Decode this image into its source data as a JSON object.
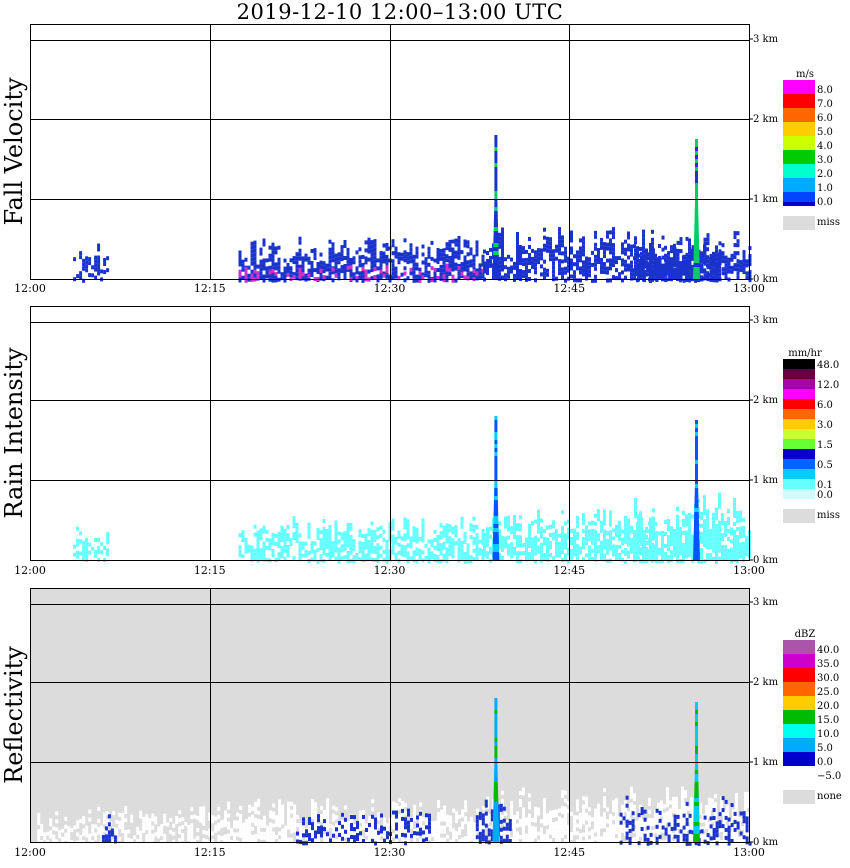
{
  "title": "2019-12-10   12:00–13:00 UTC",
  "x_ticks": [
    "12:00",
    "12:15",
    "12:30",
    "12:45",
    "13:00"
  ],
  "height_ticks": [
    "0 km",
    "1 km",
    "2 km",
    "3 km"
  ],
  "colors": {
    "missing": "#dcdcdc",
    "axis": "#000000"
  },
  "chart_data": [
    {
      "type": "heatmap",
      "ylabel": "Fall Velocity",
      "unit": "m/s",
      "xlim": [
        "12:00",
        "13:00"
      ],
      "ylim_km": [
        0,
        3
      ],
      "background": "#ffffff",
      "missing_label": "miss",
      "legend": [
        {
          "label": "8.0",
          "color": "#ff00ff"
        },
        {
          "label": "7.0",
          "color": "#ff0000"
        },
        {
          "label": "6.0",
          "color": "#ff6600"
        },
        {
          "label": "5.0",
          "color": "#ffcc00"
        },
        {
          "label": "4.0",
          "color": "#ccff00"
        },
        {
          "label": "3.0",
          "color": "#00cc00"
        },
        {
          "label": "2.0",
          "color": "#00ffcc"
        },
        {
          "label": "1.0",
          "color": "#00aaff"
        },
        {
          "label": "0.0",
          "color": "#0044ff"
        }
      ],
      "bottom_swatch": "#0000cc",
      "clusters": [
        {
          "t": [
            12.06,
            12.11
          ],
          "top_km": 0.45,
          "color": "#1a33cc",
          "density": 0.5
        },
        {
          "t": [
            12.29,
            12.63
          ],
          "top_km": 0.55,
          "color": "#1a33cc",
          "density": 0.7
        },
        {
          "t": [
            12.29,
            12.63
          ],
          "top_km": 0.2,
          "color": "#cc33cc",
          "density": 0.25
        },
        {
          "t": [
            12.63,
            12.87
          ],
          "top_km": 0.65,
          "color": "#1a33cc",
          "density": 0.7
        },
        {
          "t": [
            12.84,
            12.96
          ],
          "top_km": 0.55,
          "color": "#1a33cc",
          "density": 0.8
        },
        {
          "t": [
            12.87,
            13.0
          ],
          "top_km": 0.6,
          "color": "#1a33cc",
          "density": 0.75
        }
      ],
      "spikes": [
        {
          "t": 12.648,
          "top_km": 1.8,
          "color": "#1a33cc",
          "accent": "#00cc66"
        },
        {
          "t": 12.927,
          "top_km": 1.75,
          "color": "#00cc66",
          "accent": "#1a33cc"
        }
      ]
    },
    {
      "type": "heatmap",
      "ylabel": "Rain Intensity",
      "unit": "mm/hr",
      "xlim": [
        "12:00",
        "13:00"
      ],
      "ylim_km": [
        0,
        3
      ],
      "background": "#ffffff",
      "missing_label": "miss",
      "legend": [
        {
          "label": "48.0",
          "color": "#000000"
        },
        {
          "label": "",
          "color": "#660044"
        },
        {
          "label": "12.0",
          "color": "#aa00aa"
        },
        {
          "label": "",
          "color": "#ff00ff"
        },
        {
          "label": "6.0",
          "color": "#ff0000"
        },
        {
          "label": "",
          "color": "#ff6600"
        },
        {
          "label": "3.0",
          "color": "#ffcc00"
        },
        {
          "label": "",
          "color": "#ccff33"
        },
        {
          "label": "1.5",
          "color": "#66ff33"
        },
        {
          "label": "",
          "color": "#0000cc"
        },
        {
          "label": "0.5",
          "color": "#0066ff"
        },
        {
          "label": "",
          "color": "#00ccff"
        },
        {
          "label": "0.1",
          "color": "#66ffff"
        },
        {
          "label": "0.0",
          "color": "#ccffff"
        }
      ],
      "clusters": [
        {
          "t": [
            12.06,
            12.11
          ],
          "top_km": 0.45,
          "color": "#66ffff",
          "density": 0.5
        },
        {
          "t": [
            12.29,
            12.63
          ],
          "top_km": 0.55,
          "color": "#66ffff",
          "density": 0.7
        },
        {
          "t": [
            12.63,
            12.87
          ],
          "top_km": 0.65,
          "color": "#66ffff",
          "density": 0.7
        },
        {
          "t": [
            12.84,
            13.0
          ],
          "top_km": 0.85,
          "color": "#66ffff",
          "density": 0.75
        }
      ],
      "spikes": [
        {
          "t": 12.648,
          "top_km": 1.8,
          "color": "#0055ff",
          "accent": "#00ccff"
        },
        {
          "t": 12.927,
          "top_km": 1.75,
          "color": "#0055ff",
          "accent": "#00ccff"
        }
      ]
    },
    {
      "type": "heatmap",
      "ylabel": "Reflectivity",
      "unit": "dBZ",
      "xlim": [
        "12:00",
        "13:00"
      ],
      "ylim_km": [
        0,
        3
      ],
      "background": "#dcdcdc",
      "missing_label": "none",
      "legend": [
        {
          "label": "40.0",
          "color": "#aa55aa"
        },
        {
          "label": "35.0",
          "color": "#cc00cc"
        },
        {
          "label": "30.0",
          "color": "#ff0000"
        },
        {
          "label": "25.0",
          "color": "#ff6600"
        },
        {
          "label": "20.0",
          "color": "#ffcc00"
        },
        {
          "label": "15.0",
          "color": "#00bb00"
        },
        {
          "label": "10.0",
          "color": "#00ffee"
        },
        {
          "label": "5.0",
          "color": "#00aaff"
        },
        {
          "label": "0.0",
          "color": "#0000cc"
        },
        {
          "label": "−5.0",
          "color": "#ffffff"
        }
      ],
      "clusters": [
        {
          "t": [
            12.01,
            12.27
          ],
          "top_km": 0.45,
          "color": "#ffffff",
          "density": 0.55
        },
        {
          "t": [
            12.27,
            12.63
          ],
          "top_km": 0.55,
          "color": "#ffffff",
          "density": 0.75
        },
        {
          "t": [
            12.63,
            13.0
          ],
          "top_km": 0.7,
          "color": "#ffffff",
          "density": 0.75
        },
        {
          "t": [
            12.1,
            12.12
          ],
          "top_km": 0.35,
          "color": "#1a33cc",
          "density": 0.5
        },
        {
          "t": [
            12.37,
            12.56
          ],
          "top_km": 0.45,
          "color": "#1a33cc",
          "density": 0.35
        },
        {
          "t": [
            12.62,
            12.67
          ],
          "top_km": 0.55,
          "color": "#1a33cc",
          "density": 0.6
        },
        {
          "t": [
            12.82,
            13.0
          ],
          "top_km": 0.6,
          "color": "#1a33cc",
          "density": 0.4
        }
      ],
      "spikes": [
        {
          "t": 12.648,
          "top_km": 1.8,
          "color": "#00aaff",
          "accent": "#00bb00"
        },
        {
          "t": 12.927,
          "top_km": 1.75,
          "color": "#00ccee",
          "accent": "#00bb00"
        }
      ]
    }
  ]
}
